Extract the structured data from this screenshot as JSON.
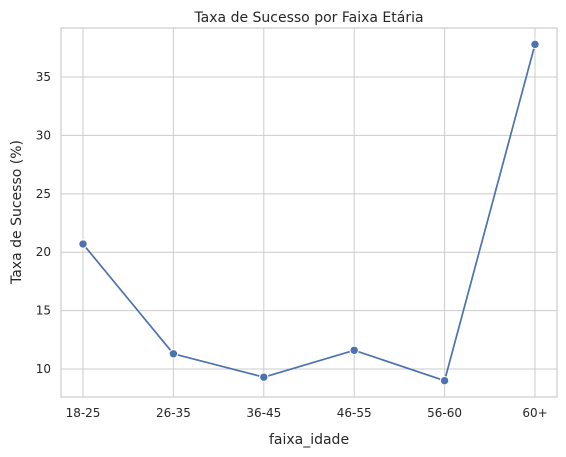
{
  "chart_data": {
    "type": "line",
    "title": "Taxa de Sucesso por Faixa Etária",
    "xlabel": "faixa_idade",
    "ylabel": "Taxa de Sucesso (%)",
    "categories": [
      "18-25",
      "26-35",
      "36-45",
      "46-55",
      "56-60",
      "60+"
    ],
    "series": [
      {
        "values": [
          20.7,
          11.3,
          9.3,
          11.6,
          9.0,
          37.8
        ],
        "color": "#4c72b0",
        "marker": "circle"
      }
    ],
    "yticks": [
      10,
      15,
      20,
      25,
      30,
      35
    ],
    "ylim": [
      7.6,
      39.2
    ],
    "grid": true,
    "legend": "none",
    "style": {
      "grid_color": "#cccccc",
      "text_color": "#262626",
      "background": "#ffffff"
    }
  }
}
